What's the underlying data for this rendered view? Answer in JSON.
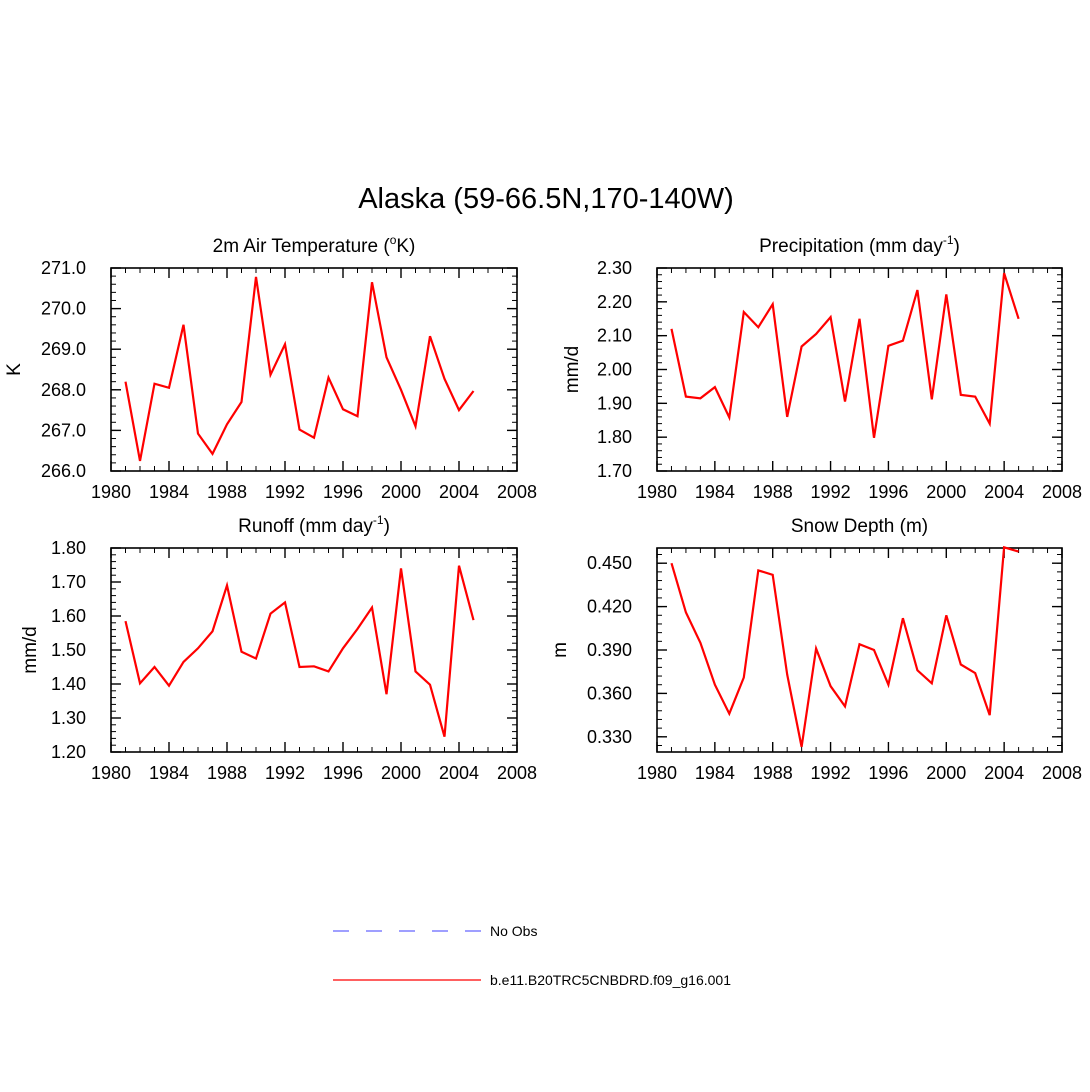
{
  "title": "Alaska (59-66.5N,170-140W)",
  "chart_data": [
    {
      "type": "line",
      "title": "2m Air Temperature (",
      "title_sup": "o",
      "title_after": "K)",
      "xlabel": "",
      "ylabel": "K",
      "xlim": [
        1980,
        2008
      ],
      "ylim": [
        266.0,
        271.0
      ],
      "xticks": [
        1980,
        1984,
        1988,
        1992,
        1996,
        2000,
        2004,
        2008
      ],
      "yticks": [
        266.0,
        267.0,
        268.0,
        269.0,
        270.0,
        271.0
      ],
      "ytick_labels": [
        "266.0",
        "267.0",
        "268.0",
        "269.0",
        "270.0",
        "271.0"
      ],
      "ytick_minor": 0.2,
      "x": [
        1981,
        1982,
        1983,
        1984,
        1985,
        1986,
        1987,
        1988,
        1989,
        1990,
        1991,
        1992,
        1993,
        1994,
        1995,
        1996,
        1997,
        1998,
        1999,
        2000,
        2001,
        2002,
        2003,
        2004,
        2005
      ],
      "series": [
        {
          "name": "b.e11.B20TRC5CNBDRD.f09_g16.001",
          "color": "#ff0000",
          "values": [
            268.2,
            266.25,
            268.15,
            268.05,
            269.6,
            266.92,
            266.42,
            267.15,
            267.7,
            270.78,
            268.37,
            269.12,
            267.02,
            266.82,
            268.3,
            267.52,
            267.35,
            270.65,
            268.8,
            268.0,
            267.1,
            269.32,
            268.27,
            267.5,
            267.97
          ]
        }
      ]
    },
    {
      "type": "line",
      "title": "Precipitation (mm day",
      "title_sup": "-1",
      "title_after": ")",
      "xlabel": "",
      "ylabel": "mm/d",
      "xlim": [
        1980,
        2008
      ],
      "ylim": [
        1.7,
        2.3
      ],
      "xticks": [
        1980,
        1984,
        1988,
        1992,
        1996,
        2000,
        2004,
        2008
      ],
      "yticks": [
        1.7,
        1.8,
        1.9,
        2.0,
        2.1,
        2.2,
        2.3
      ],
      "ytick_labels": [
        "1.70",
        "1.80",
        "1.90",
        "2.00",
        "2.10",
        "2.20",
        "2.30"
      ],
      "ytick_minor": 0.02,
      "x": [
        1981,
        1982,
        1983,
        1984,
        1985,
        1986,
        1987,
        1988,
        1989,
        1990,
        1991,
        1992,
        1993,
        1994,
        1995,
        1996,
        1997,
        1998,
        1999,
        2000,
        2001,
        2002,
        2003,
        2004,
        2005
      ],
      "series": [
        {
          "name": "b.e11.B20TRC5CNBDRD.f09_g16.001",
          "color": "#ff0000",
          "values": [
            2.12,
            1.92,
            1.915,
            1.948,
            1.858,
            2.17,
            2.125,
            2.193,
            1.86,
            2.068,
            2.105,
            2.155,
            1.905,
            2.15,
            1.798,
            2.07,
            2.085,
            2.235,
            1.912,
            2.222,
            1.925,
            1.92,
            1.84,
            2.285,
            2.15
          ]
        }
      ]
    },
    {
      "type": "line",
      "title": "Runoff (mm day",
      "title_sup": "-1",
      "title_after": ")",
      "xlabel": "",
      "ylabel": "mm/d",
      "xlim": [
        1980,
        2008
      ],
      "ylim": [
        1.2,
        1.8
      ],
      "xticks": [
        1980,
        1984,
        1988,
        1992,
        1996,
        2000,
        2004,
        2008
      ],
      "yticks": [
        1.2,
        1.3,
        1.4,
        1.5,
        1.6,
        1.7,
        1.8
      ],
      "ytick_labels": [
        "1.20",
        "1.30",
        "1.40",
        "1.50",
        "1.60",
        "1.70",
        "1.80"
      ],
      "ytick_minor": 0.02,
      "x": [
        1981,
        1982,
        1983,
        1984,
        1985,
        1986,
        1987,
        1988,
        1989,
        1990,
        1991,
        1992,
        1993,
        1994,
        1995,
        1996,
        1997,
        1998,
        1999,
        2000,
        2001,
        2002,
        2003,
        2004,
        2005
      ],
      "series": [
        {
          "name": "b.e11.B20TRC5CNBDRD.f09_g16.001",
          "color": "#ff0000",
          "values": [
            1.585,
            1.402,
            1.45,
            1.395,
            1.465,
            1.505,
            1.555,
            1.69,
            1.495,
            1.475,
            1.607,
            1.64,
            1.45,
            1.452,
            1.437,
            1.505,
            1.562,
            1.625,
            1.37,
            1.74,
            1.437,
            1.398,
            1.245,
            1.748,
            1.588
          ]
        }
      ]
    },
    {
      "type": "line",
      "title": "Snow Depth (m)",
      "title_sup": "",
      "title_after": "",
      "xlabel": "",
      "ylabel": "m",
      "xlim": [
        1980,
        2008
      ],
      "ylim": [
        0.3195,
        0.4605
      ],
      "xticks": [
        1980,
        1984,
        1988,
        1992,
        1996,
        2000,
        2004,
        2008
      ],
      "yticks": [
        0.33,
        0.36,
        0.39,
        0.42,
        0.45
      ],
      "ytick_labels": [
        "0.330",
        "0.360",
        "0.390",
        "0.420",
        "0.450"
      ],
      "ytick_minor": 0.006,
      "x": [
        1981,
        1982,
        1983,
        1984,
        1985,
        1986,
        1987,
        1988,
        1989,
        1990,
        1991,
        1992,
        1993,
        1994,
        1995,
        1996,
        1997,
        1998,
        1999,
        2000,
        2001,
        2002,
        2003,
        2004,
        2005
      ],
      "series": [
        {
          "name": "b.e11.B20TRC5CNBDRD.f09_g16.001",
          "color": "#ff0000",
          "values": [
            0.45,
            0.416,
            0.395,
            0.366,
            0.346,
            0.371,
            0.445,
            0.442,
            0.373,
            0.323,
            0.391,
            0.365,
            0.351,
            0.394,
            0.39,
            0.366,
            0.412,
            0.376,
            0.367,
            0.414,
            0.38,
            0.374,
            0.345,
            0.461,
            0.458
          ]
        }
      ]
    }
  ],
  "legend": [
    {
      "label": "No Obs",
      "color": "#6666ff",
      "style": "dashed"
    },
    {
      "label": "b.e11.B20TRC5CNBDRD.f09_g16.001",
      "color": "#ff0000",
      "style": "solid"
    }
  ]
}
